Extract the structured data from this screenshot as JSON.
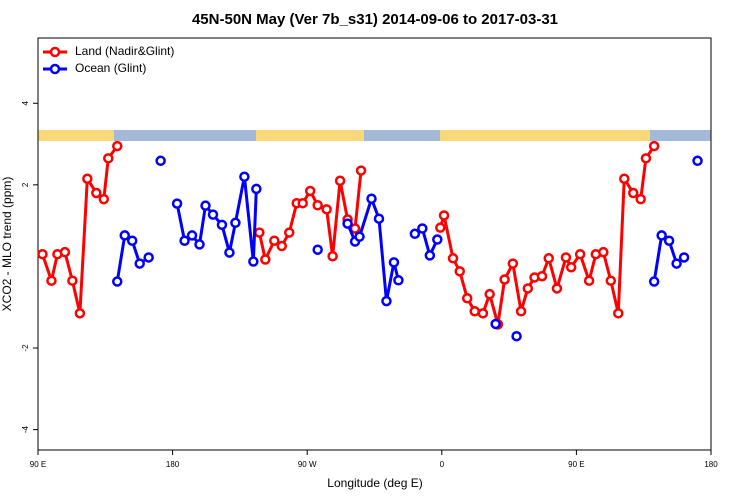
{
  "chart_data": {
    "type": "line",
    "title": "45N-50N May (Ver 7b_s31)   2014-09-06 to 2017-03-31",
    "x_label": "Longitude (deg E)",
    "y_label": "XCO2 - MLO trend (ppm)",
    "xlim": [
      90,
      540
    ],
    "ylim": [
      -4.5,
      5.6
    ],
    "xticks": [
      {
        "value": 90,
        "label": "90 E"
      },
      180,
      {
        "value": 270,
        "label": "90 W"
      },
      {
        "value": 360,
        "label": "0"
      },
      {
        "value": 450,
        "label": "90 E"
      },
      {
        "value": 540,
        "label": "180"
      }
    ],
    "yticks": [
      -4,
      -2,
      2,
      4
    ],
    "legend": "top-left",
    "series": [
      {
        "name": "Land (Nadir&Glint)",
        "color": "#ff0000",
        "x": [
          93,
          99,
          103,
          108,
          113,
          118,
          123,
          129,
          134,
          137,
          143,
          null,
          238,
          242,
          248,
          253,
          258,
          263,
          267,
          272,
          277,
          283,
          287,
          292,
          297,
          302,
          306,
          null,
          359,
          361.5,
          367.5,
          372,
          377,
          382,
          387.5,
          392,
          397.5,
          402,
          407.5,
          413,
          417.5,
          422,
          427,
          431.5,
          437,
          443,
          446.5,
          452.5,
          458.5,
          463,
          468,
          473,
          478,
          482,
          488,
          493,
          496.5,
          502
        ],
        "values": [
          0.3,
          -0.35,
          0.3,
          0.35,
          -0.35,
          -1.15,
          2.15,
          1.8,
          1.65,
          2.65,
          2.95,
          null,
          0.83,
          0.17,
          0.63,
          0.5,
          0.83,
          1.55,
          1.55,
          1.85,
          1.5,
          1.4,
          0.25,
          2.1,
          1.15,
          0.93,
          2.35,
          null,
          0.95,
          1.25,
          0.2,
          -0.12,
          -0.78,
          -1.1,
          -1.15,
          -0.68,
          -1.42,
          -0.32,
          0.07,
          -1.1,
          -0.54,
          -0.27,
          -0.24,
          0.2,
          -0.54,
          0.22,
          -0.02,
          0.3,
          -0.35,
          0.3,
          0.35,
          -0.35,
          -1.15,
          2.15,
          1.8,
          1.65,
          2.65,
          2.95
        ]
      },
      {
        "name": "Ocean (Glint)",
        "color": "#0000ff",
        "x": [
          143,
          148,
          153,
          158,
          164,
          null,
          172,
          null,
          183,
          188,
          193,
          198,
          202,
          207,
          213,
          218,
          222,
          228,
          234,
          236,
          null,
          277,
          null,
          297,
          302,
          305,
          313,
          318,
          323,
          328,
          331,
          null,
          342,
          347,
          352,
          357,
          null,
          396,
          null,
          410,
          null,
          502,
          507,
          512,
          517,
          522,
          null,
          531
        ],
        "values": [
          -0.37,
          0.76,
          0.63,
          0.07,
          0.22,
          null,
          2.59,
          null,
          1.54,
          0.63,
          0.76,
          0.54,
          1.49,
          1.27,
          1.02,
          0.34,
          1.07,
          2.2,
          0.12,
          1.9,
          null,
          0.41,
          null,
          1.05,
          0.61,
          0.73,
          1.66,
          1.17,
          -0.85,
          0.1,
          -0.34,
          null,
          0.8,
          0.93,
          0.27,
          0.66,
          null,
          -1.41,
          null,
          -1.71,
          null,
          -0.37,
          0.76,
          0.63,
          0.07,
          0.22,
          null,
          2.59
        ]
      }
    ]
  }
}
